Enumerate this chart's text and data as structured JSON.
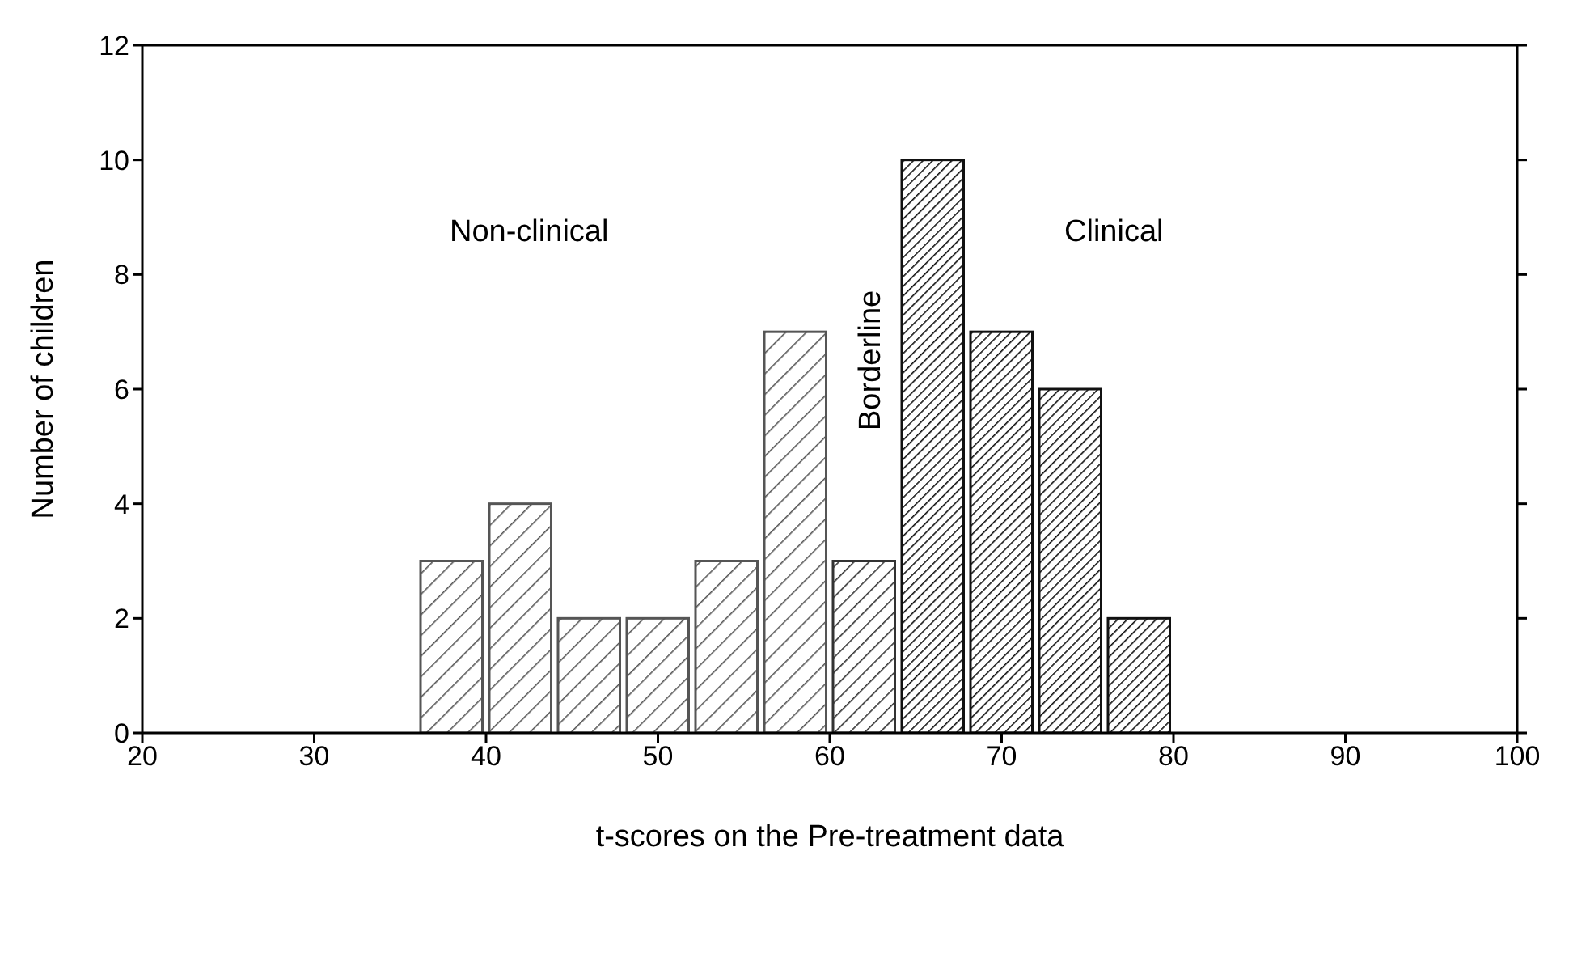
{
  "chart_data": {
    "type": "histogram",
    "xlabel": "t-scores on the Pre-treatment data",
    "ylabel": "Number of children",
    "bins": [
      36,
      40,
      44,
      48,
      52,
      56,
      60,
      64,
      68,
      72,
      76,
      80
    ],
    "values": [
      3,
      4,
      2,
      2,
      3,
      7,
      3,
      10,
      7,
      6,
      2
    ],
    "colors": [
      "#555555",
      "#555555",
      "#555555",
      "#555555",
      "#555555",
      "#555555",
      "#333333",
      "#111111",
      "#111111",
      "#111111",
      "#111111"
    ],
    "xlim": [
      20,
      100
    ],
    "xticks": [
      20,
      30,
      40,
      50,
      60,
      70,
      80,
      90,
      100
    ],
    "ylim": [
      0,
      12
    ],
    "yticks": [
      0,
      2,
      4,
      6,
      8,
      10,
      12
    ],
    "annotations": [
      "Non-clinical",
      "Clinical",
      "Borderline"
    ]
  }
}
